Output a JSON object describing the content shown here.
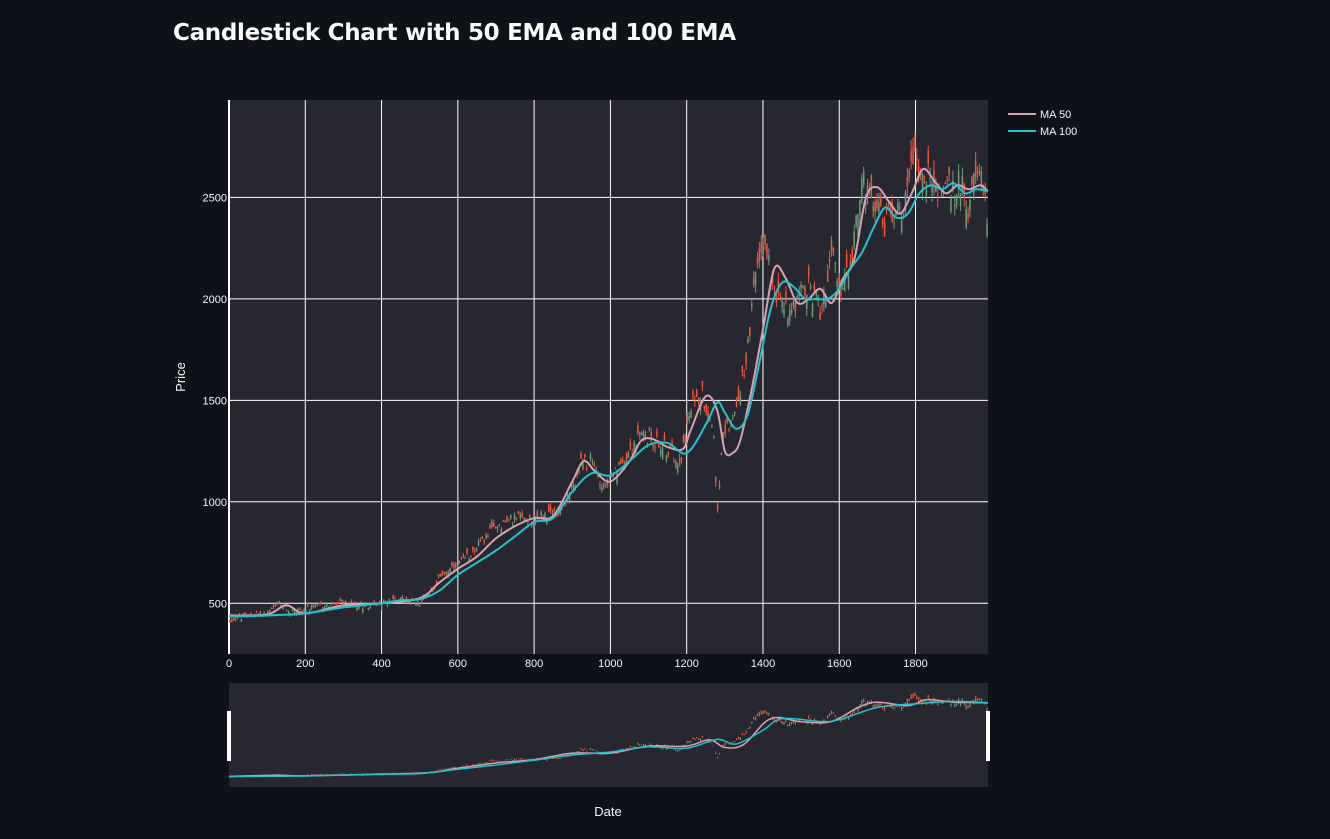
{
  "page": {
    "title": "Candlestick Chart with 50 EMA and 100 EMA"
  },
  "colors": {
    "background": "#0e1117",
    "plot_bg": "#262730",
    "grid": "#ffffff",
    "increasing": "#6b9b78",
    "decreasing": "#ef553b",
    "ma50": "#d7a1b3",
    "ma100": "#23c2cf"
  },
  "chart_data": {
    "type": "candlestick",
    "title": "Candlestick Chart with 50 EMA and 100 EMA",
    "xlabel": "Date",
    "ylabel": "Price",
    "xlim": [
      0,
      1990
    ],
    "ylim": [
      250,
      2980
    ],
    "x_ticks": [
      0,
      200,
      400,
      600,
      800,
      1000,
      1200,
      1400,
      1600,
      1800
    ],
    "y_ticks": [
      500,
      1000,
      1500,
      2000,
      2500
    ],
    "legend": [
      {
        "name": "MA 50",
        "color": "#d7a1b3"
      },
      {
        "name": "MA 100",
        "color": "#23c2cf"
      }
    ],
    "legend_position": "top-right outside",
    "rangeslider": true,
    "price_path": {
      "x": [
        0,
        50,
        100,
        130,
        160,
        200,
        250,
        300,
        350,
        400,
        450,
        500,
        530,
        560,
        600,
        650,
        700,
        750,
        800,
        850,
        880,
        900,
        920,
        950,
        980,
        1000,
        1050,
        1080,
        1100,
        1130,
        1160,
        1180,
        1200,
        1220,
        1240,
        1260,
        1270,
        1280,
        1290,
        1300,
        1330,
        1360,
        1380,
        1400,
        1420,
        1440,
        1460,
        1490,
        1520,
        1550,
        1580,
        1600,
        1620,
        1640,
        1660,
        1680,
        1700,
        1720,
        1740,
        1760,
        1780,
        1800,
        1820,
        1840,
        1860,
        1880,
        1900,
        1920,
        1940,
        1960,
        1980,
        1990
      ],
      "close": [
        415,
        440,
        450,
        495,
        460,
        470,
        490,
        500,
        485,
        500,
        520,
        505,
        560,
        650,
        680,
        780,
        880,
        920,
        920,
        940,
        1000,
        1050,
        1180,
        1200,
        1080,
        1100,
        1250,
        1320,
        1320,
        1280,
        1250,
        1200,
        1350,
        1520,
        1540,
        1430,
        1380,
        950,
        1200,
        1350,
        1450,
        1750,
        2100,
        2300,
        2150,
        2000,
        1950,
        2000,
        2050,
        1950,
        2200,
        2050,
        2100,
        2300,
        2600,
        2450,
        2500,
        2350,
        2450,
        2400,
        2600,
        2750,
        2550,
        2650,
        2500,
        2600,
        2500,
        2600,
        2450,
        2600,
        2550,
        2350
      ]
    },
    "ma50_path": {
      "x": [
        0,
        100,
        150,
        200,
        300,
        400,
        500,
        550,
        600,
        650,
        700,
        750,
        800,
        850,
        900,
        930,
        960,
        1000,
        1050,
        1080,
        1110,
        1150,
        1190,
        1210,
        1250,
        1280,
        1300,
        1320,
        1340,
        1370,
        1400,
        1430,
        1460,
        1490,
        1520,
        1550,
        1580,
        1610,
        1640,
        1670,
        1700,
        1730,
        1760,
        1790,
        1820,
        1850,
        1880,
        1910,
        1940,
        1970,
        1990
      ],
      "y": [
        440,
        445,
        490,
        450,
        490,
        500,
        525,
        600,
        670,
        730,
        820,
        880,
        920,
        930,
        1100,
        1200,
        1150,
        1100,
        1200,
        1300,
        1310,
        1270,
        1260,
        1350,
        1520,
        1450,
        1250,
        1240,
        1300,
        1550,
        1850,
        2150,
        2100,
        1980,
        2000,
        2050,
        1980,
        2100,
        2200,
        2500,
        2550,
        2480,
        2420,
        2520,
        2640,
        2580,
        2520,
        2560,
        2540,
        2560,
        2530
      ]
    },
    "ma100_path": {
      "x": [
        0,
        100,
        200,
        300,
        400,
        450,
        500,
        550,
        600,
        650,
        700,
        750,
        800,
        850,
        900,
        950,
        1000,
        1050,
        1100,
        1150,
        1200,
        1250,
        1280,
        1300,
        1330,
        1360,
        1390,
        1420,
        1450,
        1480,
        1510,
        1540,
        1570,
        1600,
        1630,
        1660,
        1690,
        1720,
        1750,
        1780,
        1810,
        1840,
        1870,
        1900,
        1930,
        1960,
        1990
      ],
      "y": [
        435,
        440,
        450,
        480,
        500,
        515,
        520,
        560,
        640,
        700,
        760,
        830,
        900,
        920,
        1050,
        1140,
        1130,
        1200,
        1280,
        1290,
        1240,
        1380,
        1490,
        1440,
        1360,
        1430,
        1680,
        1950,
        2080,
        2060,
        2000,
        2000,
        2000,
        2050,
        2150,
        2230,
        2350,
        2450,
        2400,
        2420,
        2520,
        2560,
        2540,
        2570,
        2520,
        2540,
        2530
      ]
    },
    "candle_count": 400
  },
  "annotations": {
    "rangeslider": {
      "ma50_points": [
        [
          0,
          440
        ],
        [
          120,
          470
        ],
        [
          200,
          455
        ],
        [
          400,
          505
        ],
        [
          520,
          540
        ],
        [
          600,
          670
        ],
        [
          700,
          820
        ],
        [
          800,
          915
        ],
        [
          900,
          1100
        ],
        [
          1000,
          1100
        ],
        [
          1100,
          1300
        ],
        [
          1200,
          1300
        ],
        [
          1260,
          1480
        ],
        [
          1300,
          1260
        ],
        [
          1350,
          1350
        ],
        [
          1420,
          2080
        ],
        [
          1500,
          1990
        ],
        [
          1580,
          2000
        ],
        [
          1650,
          2400
        ],
        [
          1700,
          2550
        ],
        [
          1780,
          2450
        ],
        [
          1830,
          2620
        ],
        [
          1900,
          2550
        ],
        [
          1990,
          2530
        ]
      ],
      "ma100_points": [
        [
          0,
          435
        ],
        [
          200,
          450
        ],
        [
          400,
          500
        ],
        [
          500,
          520
        ],
        [
          600,
          640
        ],
        [
          700,
          760
        ],
        [
          800,
          900
        ],
        [
          900,
          1050
        ],
        [
          1000,
          1130
        ],
        [
          1100,
          1280
        ],
        [
          1200,
          1240
        ],
        [
          1280,
          1490
        ],
        [
          1330,
          1360
        ],
        [
          1400,
          1750
        ],
        [
          1450,
          2080
        ],
        [
          1550,
          2000
        ],
        [
          1600,
          2050
        ],
        [
          1700,
          2400
        ],
        [
          1800,
          2500
        ],
        [
          1900,
          2570
        ],
        [
          1990,
          2530
        ]
      ]
    }
  }
}
